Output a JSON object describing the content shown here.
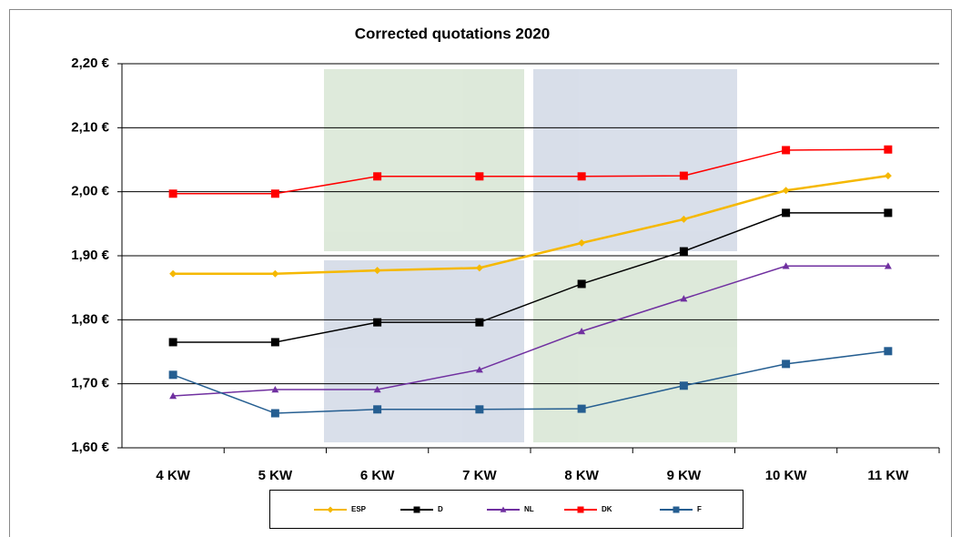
{
  "chart_data": {
    "type": "line",
    "title": "Corrected quotations 2020",
    "categories": [
      "4 KW",
      "5 KW",
      "6 KW",
      "7 KW",
      "8 KW",
      "9 KW",
      "10 KW",
      "11 KW"
    ],
    "series": [
      {
        "name": "ESP",
        "color": "#f5b800",
        "marker": "diamond",
        "values": [
          1.872,
          1.872,
          1.877,
          1.881,
          1.92,
          1.957,
          2.002,
          2.025
        ]
      },
      {
        "name": "D",
        "color": "#000000",
        "marker": "square",
        "values": [
          1.765,
          1.765,
          1.796,
          1.796,
          1.856,
          1.907,
          1.967,
          1.967
        ]
      },
      {
        "name": "NL",
        "color": "#7030a0",
        "marker": "triangle",
        "values": [
          1.681,
          1.691,
          1.691,
          1.722,
          1.782,
          1.833,
          1.884,
          1.884
        ]
      },
      {
        "name": "DK",
        "color": "#ff0000",
        "marker": "square",
        "values": [
          1.997,
          1.997,
          2.024,
          2.024,
          2.024,
          2.025,
          2.065,
          2.066
        ]
      },
      {
        "name": "F",
        "color": "#255e91",
        "marker": "square",
        "values": [
          1.714,
          1.654,
          1.66,
          1.66,
          1.661,
          1.697,
          1.731,
          1.751
        ]
      }
    ],
    "ylim": [
      1.6,
      2.2
    ],
    "yticks": [
      {
        "value": 1.6,
        "label": "1,60 €"
      },
      {
        "value": 1.7,
        "label": "1,70 €"
      },
      {
        "value": 1.8,
        "label": "1,80 €"
      },
      {
        "value": 1.9,
        "label": "1,90 €"
      },
      {
        "value": 2.0,
        "label": "2,00 €"
      },
      {
        "value": 2.1,
        "label": "2,10 €"
      },
      {
        "value": 2.2,
        "label": "2,20 €"
      }
    ],
    "grid": true,
    "legend": "bottom"
  }
}
